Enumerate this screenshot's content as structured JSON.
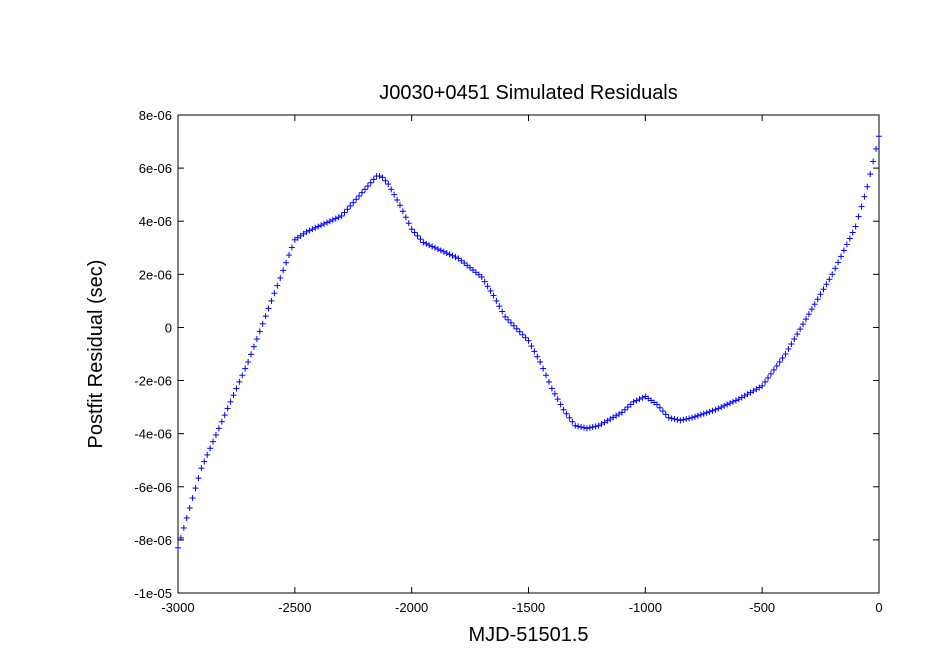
{
  "chart_data": {
    "type": "scatter",
    "title": "J0030+0451 Simulated Residuals",
    "xlabel": "MJD-51501.5",
    "ylabel": "Postfit Residual (sec)",
    "xlim": [
      -3000,
      0
    ],
    "ylim": [
      -1e-05,
      8e-06
    ],
    "x_ticks": [
      -3000,
      -2500,
      -2000,
      -1500,
      -1000,
      -500,
      0
    ],
    "x_tick_labels": [
      "-3000",
      "-2500",
      "-2000",
      "-1500",
      "-1000",
      "-500",
      "0"
    ],
    "y_ticks": [
      -1e-05,
      -8e-06,
      -6e-06,
      -4e-06,
      -2e-06,
      0,
      2e-06,
      4e-06,
      6e-06,
      8e-06
    ],
    "y_tick_labels": [
      "-1e-05",
      "-8e-06",
      "-6e-06",
      "-4e-06",
      "-2e-06",
      "0",
      "2e-06",
      "4e-06",
      "6e-06",
      "8e-06"
    ],
    "grid": false,
    "marker": "+",
    "marker_color": "#0000ff",
    "series": [
      {
        "x": [
          -3000,
          -2900,
          -2800,
          -2700,
          -2600,
          -2500,
          -2450,
          -2400,
          -2300,
          -2200,
          -2150,
          -2130,
          -2100,
          -2050,
          -2000,
          -1950,
          -1900,
          -1800,
          -1700,
          -1650,
          -1600,
          -1500,
          -1450,
          -1400,
          -1350,
          -1300,
          -1250,
          -1200,
          -1100,
          -1050,
          -1000,
          -950,
          -900,
          -850,
          -800,
          -700,
          -600,
          -500,
          -400,
          -300,
          -200,
          -100,
          -50,
          0
        ],
        "y": [
          -8.3e-06,
          -5.3e-06,
          -3.3e-06,
          -1.3e-06,
          1e-06,
          3.3e-06,
          3.6e-06,
          3.8e-06,
          4.2e-06,
          5.2e-06,
          5.7e-06,
          5.7e-06,
          5.4e-06,
          4.6e-06,
          3.7e-06,
          3.2e-06,
          3e-06,
          2.6e-06,
          1.9e-06,
          1.2e-06,
          4e-07,
          -5e-07,
          -1.3e-06,
          -2.3e-06,
          -3.1e-06,
          -3.7e-06,
          -3.8e-06,
          -3.7e-06,
          -3.2e-06,
          -2.8e-06,
          -2.6e-06,
          -2.9e-06,
          -3.4e-06,
          -3.5e-06,
          -3.4e-06,
          -3.1e-06,
          -2.7e-06,
          -2.2e-06,
          -1e-06,
          5e-07,
          2e-06,
          3.8e-06,
          5.3e-06,
          7.2e-06
        ]
      }
    ]
  }
}
